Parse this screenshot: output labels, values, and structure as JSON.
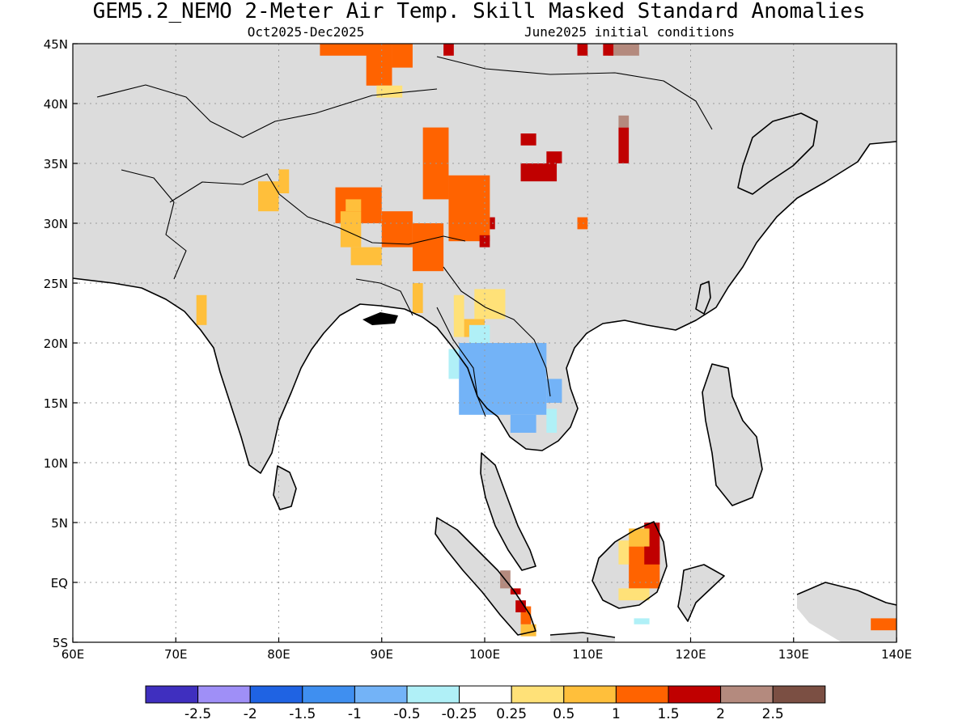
{
  "title": "GEM5.2_NEMO 2-Meter Air Temp. Skill Masked Standard Anomalies",
  "subtitle_left": "Oct2025-Dec2025",
  "subtitle_right": "June2025 initial conditions",
  "map": {
    "lon_range": [
      60,
      140
    ],
    "lat_range": [
      -5,
      45
    ],
    "background": "#ffffff",
    "no_skill_color": "#dcdcdc",
    "coast_color": "#000000",
    "grid": true,
    "x_ticks": [
      {
        "value": 60,
        "label": "60E"
      },
      {
        "value": 70,
        "label": "70E"
      },
      {
        "value": 80,
        "label": "80E"
      },
      {
        "value": 90,
        "label": "90E"
      },
      {
        "value": 100,
        "label": "100E"
      },
      {
        "value": 110,
        "label": "110E"
      },
      {
        "value": 120,
        "label": "120E"
      },
      {
        "value": 130,
        "label": "130E"
      },
      {
        "value": 140,
        "label": "140E"
      }
    ],
    "y_ticks": [
      {
        "value": 45,
        "label": "45N"
      },
      {
        "value": 40,
        "label": "40N"
      },
      {
        "value": 35,
        "label": "35N"
      },
      {
        "value": 30,
        "label": "30N"
      },
      {
        "value": 25,
        "label": "25N"
      },
      {
        "value": 20,
        "label": "20N"
      },
      {
        "value": 15,
        "label": "15N"
      },
      {
        "value": 10,
        "label": "10N"
      },
      {
        "value": 5,
        "label": "5N"
      },
      {
        "value": 0,
        "label": "EQ"
      },
      {
        "value": -5,
        "label": "5S"
      }
    ]
  },
  "colorbar": {
    "colors": [
      "#3f2fbf",
      "#9f8ff7",
      "#1f63e3",
      "#3f8ff0",
      "#73b3f7",
      "#b0f0f7",
      "#ffffff",
      "#ffe178",
      "#ffbf3b",
      "#ff6300",
      "#c00000",
      "#b48a7e",
      "#7b4f43"
    ],
    "labels": [
      "-2.5",
      "-2",
      "-1.5",
      "-1",
      "-0.5",
      "-0.25",
      "0.25",
      "0.5",
      "1",
      "1.5",
      "2",
      "2.5"
    ]
  },
  "colors": {
    "no_skill": "#dcdcdc",
    "neg_050": "#b0f0f7",
    "neg_100": "#73b3f7",
    "pos_025": "#ffe178",
    "pos_050": "#ffbf3b",
    "pos_100": "#ff6300",
    "pos_150": "#c00000",
    "pos_200": "#b48a7e"
  }
}
